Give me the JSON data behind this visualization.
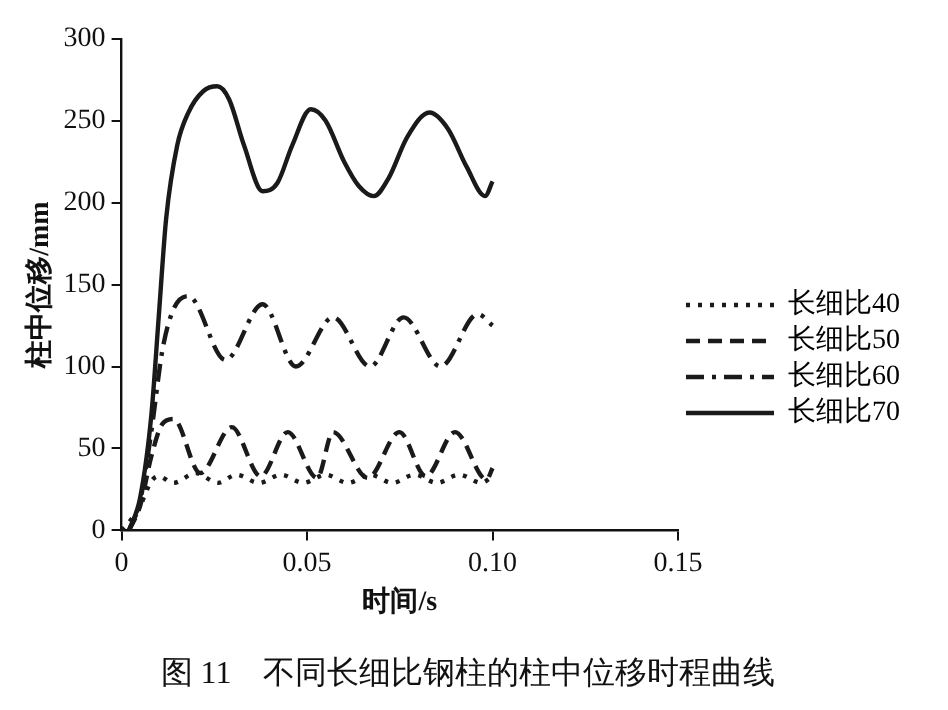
{
  "chart_data": {
    "type": "line",
    "title": "图 11　不同长细比钢柱的柱中位移时程曲线",
    "xlabel": "时间/s",
    "ylabel": "柱中位移/mm",
    "xlim": [
      0,
      0.15
    ],
    "xticks": [
      0,
      0.05,
      {
        "value": 0.1,
        "label": "0.10"
      },
      0.15
    ],
    "ylim": [
      0,
      300
    ],
    "yticks": [
      0,
      50,
      100,
      150,
      200,
      250,
      300
    ],
    "grid": false,
    "legend": "right",
    "marker": "none",
    "series": [
      {
        "name": "长细比40",
        "color": "#1a1a1a",
        "line_style": "dotted",
        "x": [
          0,
          0.002,
          0.005,
          0.008,
          0.01,
          0.014,
          0.02,
          0.026,
          0.031,
          0.037,
          0.043,
          0.049,
          0.055,
          0.061,
          0.067,
          0.073,
          0.079,
          0.085,
          0.091,
          0.097,
          0.1
        ],
        "values": [
          0,
          5,
          15,
          30,
          33,
          29,
          35,
          29,
          34,
          29,
          34,
          29,
          34,
          29,
          34,
          29,
          34,
          29,
          34,
          29,
          33
        ]
      },
      {
        "name": "长细比50",
        "color": "#1a1a1a",
        "line_style": "dashed",
        "x": [
          0.002,
          0.005,
          0.008,
          0.011,
          0.014,
          0.0212,
          0.0297,
          0.0375,
          0.0448,
          0.0527,
          0.057,
          0.0664,
          0.0749,
          0.082,
          0.0899,
          0.0984,
          0.1
        ],
        "values": [
          0,
          15,
          45,
          65,
          68,
          35,
          63,
          33,
          60,
          32,
          60,
          32,
          60,
          33,
          60,
          31,
          38
        ]
      },
      {
        "name": "长细比60",
        "color": "#1a1a1a",
        "line_style": "dashdot",
        "x": [
          0.002,
          0.005,
          0.008,
          0.011,
          0.014,
          0.018,
          0.028,
          0.038,
          0.047,
          0.057,
          0.067,
          0.076,
          0.086,
          0.096,
          0.1
        ],
        "values": [
          0,
          18,
          60,
          110,
          135,
          143,
          104,
          138,
          100,
          130,
          100,
          130,
          100,
          132,
          125
        ]
      },
      {
        "name": "长细比70",
        "color": "#1a1a1a",
        "line_style": "solid",
        "x": [
          0.002,
          0.005,
          0.008,
          0.01,
          0.012,
          0.015,
          0.018,
          0.022,
          0.0258,
          0.029,
          0.033,
          0.038,
          0.042,
          0.046,
          0.051,
          0.055,
          0.06,
          0.064,
          0.068,
          0.072,
          0.077,
          0.083,
          0.088,
          0.093,
          0.098,
          0.1
        ],
        "values": [
          0,
          20,
          70,
          130,
          190,
          235,
          255,
          268,
          271,
          263,
          235,
          207,
          212,
          235,
          257,
          250,
          225,
          210,
          204,
          215,
          240,
          255,
          245,
          222,
          204,
          213
        ]
      }
    ]
  }
}
